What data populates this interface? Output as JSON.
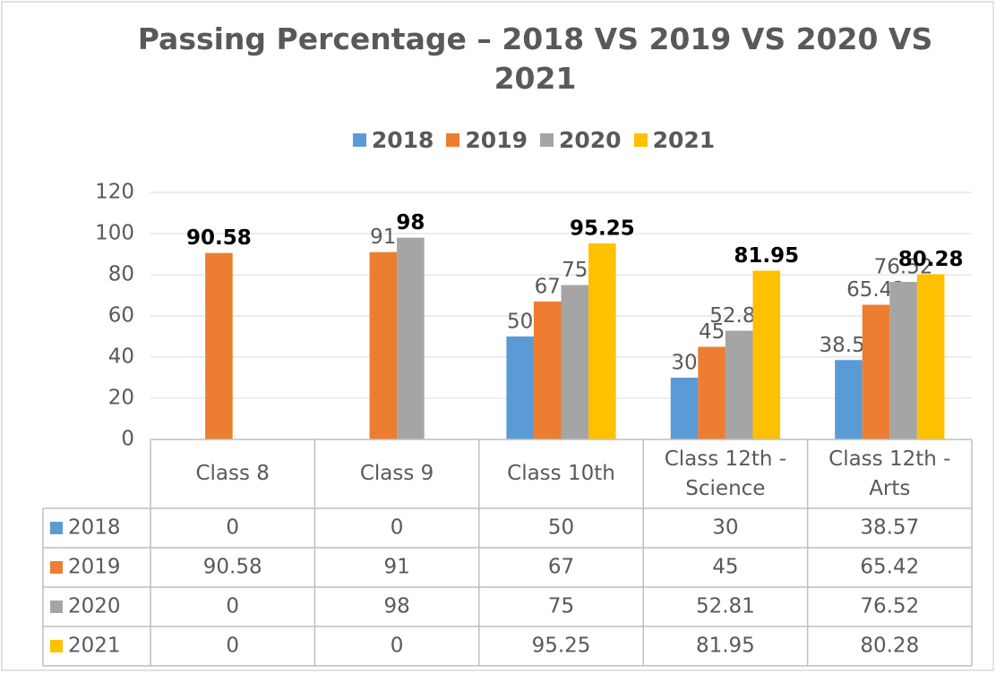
{
  "chart_data": {
    "type": "bar",
    "title": "Passing Percentage – 2018 VS 2019 VS 2020 VS 2021",
    "categories": [
      "Class 8",
      "Class 9",
      "Class 10th",
      "Class 12th - Science",
      "Class 12th - Arts"
    ],
    "series": [
      {
        "name": "2018",
        "color": "#5b9bd5",
        "values": [
          0,
          0,
          50,
          30,
          38.57
        ]
      },
      {
        "name": "2019",
        "color": "#ed7d31",
        "values": [
          90.58,
          91,
          67,
          45,
          65.42
        ]
      },
      {
        "name": "2020",
        "color": "#a5a5a5",
        "values": [
          0,
          98,
          75,
          52.81,
          76.52
        ]
      },
      {
        "name": "2021",
        "color": "#ffc000",
        "values": [
          0,
          0,
          95.25,
          81.95,
          80.28
        ]
      }
    ],
    "ylim": [
      0,
      120
    ],
    "yticks": [
      0,
      20,
      40,
      60,
      80,
      100,
      120
    ],
    "grid": true,
    "legend": "top"
  }
}
